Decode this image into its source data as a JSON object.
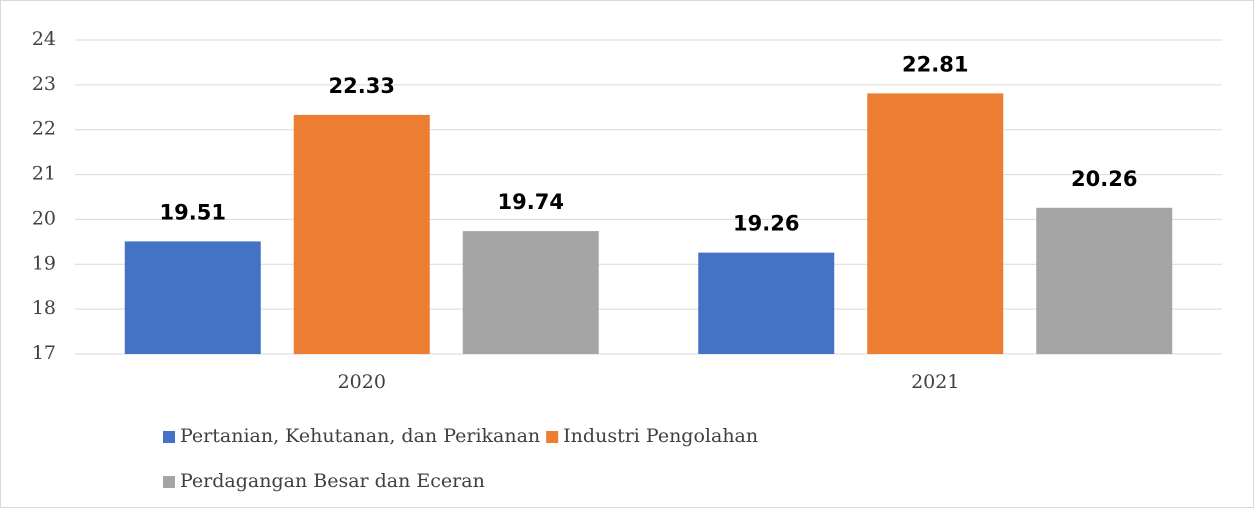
{
  "chart_data": {
    "type": "bar",
    "categories": [
      "2020",
      "2021"
    ],
    "series": [
      {
        "name": "Pertanian, Kehutanan, dan Perikanan",
        "color": "#4472c4",
        "values": [
          19.51,
          19.26
        ]
      },
      {
        "name": "Industri Pengolahan",
        "color": "#ed7d31",
        "values": [
          22.33,
          22.81
        ]
      },
      {
        "name": "Perdagangan Besar dan Eceran",
        "color": "#a5a5a5",
        "values": [
          19.74,
          20.26
        ]
      }
    ],
    "ylim": [
      17,
      24
    ],
    "yticks": [
      17,
      18,
      19,
      20,
      21,
      22,
      23,
      24
    ],
    "grid": true,
    "legend": "bottom"
  }
}
